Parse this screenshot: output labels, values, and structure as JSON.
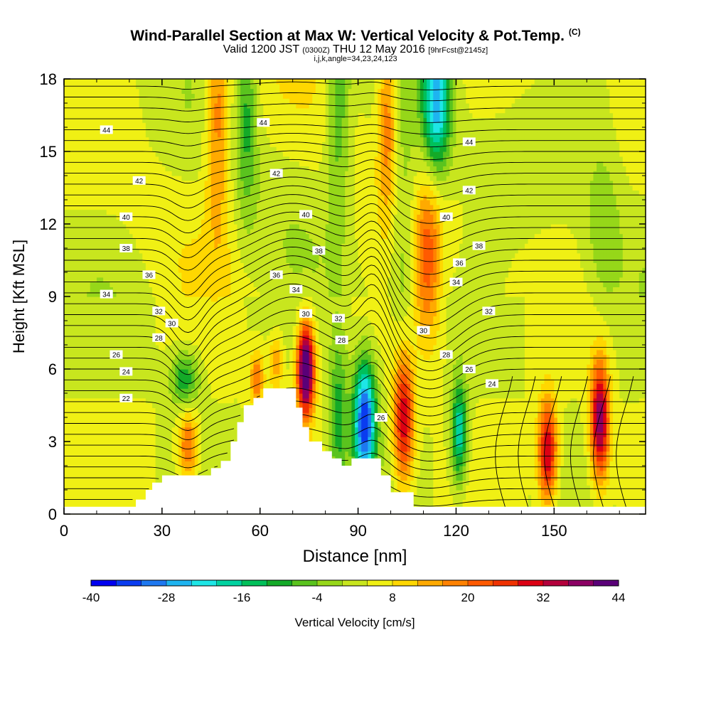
{
  "header": {
    "title": "Wind-Parallel Section at Max W: Vertical Velocity & Pot.Temp.",
    "title_mark": "(C)",
    "valid_pre": "Valid 1200 JST",
    "valid_small": "(0300Z)",
    "valid_post": "THU 12 May 2016",
    "fcst": "[9hrFcst@2145z]",
    "indices": "i,j,k,angle=34,23,24,123"
  },
  "chart_data": {
    "type": "heatmap",
    "xlabel": "Distance [nm]",
    "ylabel": "Height [Kft MSL]",
    "xlim": [
      0,
      178
    ],
    "ylim": [
      0,
      18
    ],
    "x_ticks": [
      0,
      30,
      60,
      90,
      120,
      150
    ],
    "y_ticks": [
      0,
      3,
      6,
      9,
      12,
      15,
      18
    ],
    "colorbar": {
      "label": "Vertical Velocity [cm/s]",
      "min": -40,
      "step": 4,
      "ticks": [
        -40,
        -28,
        -16,
        -4,
        8,
        20,
        32,
        44
      ],
      "colors": [
        "#0000f0",
        "#0a3cf0",
        "#1e78f0",
        "#1eb4f0",
        "#1ee6e6",
        "#00d2a0",
        "#00c05a",
        "#14aa28",
        "#5ac31e",
        "#96d719",
        "#c8e61e",
        "#f0f014",
        "#ffd700",
        "#ffaa00",
        "#ff8200",
        "#ff5a00",
        "#f03200",
        "#dc0014",
        "#b4003c",
        "#8c0064",
        "#5a0078"
      ]
    },
    "theta_labels": [
      {
        "v": "44",
        "x": 13,
        "y": 15.9
      },
      {
        "v": "44",
        "x": 61,
        "y": 16.2
      },
      {
        "v": "44",
        "x": 124,
        "y": 15.4
      },
      {
        "v": "42",
        "x": 23,
        "y": 13.8
      },
      {
        "v": "42",
        "x": 65,
        "y": 14.1
      },
      {
        "v": "42",
        "x": 124,
        "y": 13.4
      },
      {
        "v": "40",
        "x": 19,
        "y": 12.3
      },
      {
        "v": "40",
        "x": 74,
        "y": 12.4
      },
      {
        "v": "40",
        "x": 117,
        "y": 12.3
      },
      {
        "v": "38",
        "x": 19,
        "y": 11.0
      },
      {
        "v": "38",
        "x": 78,
        "y": 10.9
      },
      {
        "v": "38",
        "x": 127,
        "y": 11.1
      },
      {
        "v": "36",
        "x": 26,
        "y": 9.9
      },
      {
        "v": "36",
        "x": 65,
        "y": 9.9
      },
      {
        "v": "36",
        "x": 121,
        "y": 10.4
      },
      {
        "v": "34",
        "x": 13,
        "y": 9.1
      },
      {
        "v": "34",
        "x": 71,
        "y": 9.3
      },
      {
        "v": "34",
        "x": 120,
        "y": 9.6
      },
      {
        "v": "32",
        "x": 29,
        "y": 8.4
      },
      {
        "v": "32",
        "x": 84,
        "y": 8.1
      },
      {
        "v": "32",
        "x": 130,
        "y": 8.4
      },
      {
        "v": "30",
        "x": 33,
        "y": 7.9
      },
      {
        "v": "30",
        "x": 74,
        "y": 8.3
      },
      {
        "v": "30",
        "x": 110,
        "y": 7.6
      },
      {
        "v": "28",
        "x": 29,
        "y": 7.3
      },
      {
        "v": "28",
        "x": 85,
        "y": 7.2
      },
      {
        "v": "28",
        "x": 117,
        "y": 6.6
      },
      {
        "v": "26",
        "x": 16,
        "y": 6.6
      },
      {
        "v": "26",
        "x": 97,
        "y": 4.0
      },
      {
        "v": "26",
        "x": 124,
        "y": 6.0
      },
      {
        "v": "24",
        "x": 19,
        "y": 5.9
      },
      {
        "v": "24",
        "x": 131,
        "y": 5.4
      },
      {
        "v": "22",
        "x": 19,
        "y": 4.8
      }
    ],
    "terrain": [
      [
        0,
        0.3
      ],
      [
        22,
        0.3
      ],
      [
        22,
        0.6
      ],
      [
        25,
        0.6
      ],
      [
        25,
        1.0
      ],
      [
        27,
        1.0
      ],
      [
        27,
        1.3
      ],
      [
        30,
        1.3
      ],
      [
        30,
        1.6
      ],
      [
        45,
        1.6
      ],
      [
        45,
        1.9
      ],
      [
        48,
        1.9
      ],
      [
        48,
        2.2
      ],
      [
        51,
        2.2
      ],
      [
        51,
        3.0
      ],
      [
        53,
        3.0
      ],
      [
        53,
        3.8
      ],
      [
        55,
        3.8
      ],
      [
        55,
        4.5
      ],
      [
        58,
        4.5
      ],
      [
        58,
        4.8
      ],
      [
        61,
        4.8
      ],
      [
        61,
        5.2
      ],
      [
        71,
        5.2
      ],
      [
        71,
        4.4
      ],
      [
        73,
        4.4
      ],
      [
        73,
        3.6
      ],
      [
        75,
        3.6
      ],
      [
        75,
        3.0
      ],
      [
        79,
        3.0
      ],
      [
        79,
        2.6
      ],
      [
        82,
        2.6
      ],
      [
        82,
        2.3
      ],
      [
        85,
        2.3
      ],
      [
        85,
        2.0
      ],
      [
        88,
        2.0
      ],
      [
        88,
        2.3
      ],
      [
        97,
        2.3
      ],
      [
        97,
        1.6
      ],
      [
        100,
        1.6
      ],
      [
        100,
        0.9
      ],
      [
        107,
        0.9
      ],
      [
        107,
        0.3
      ],
      [
        178,
        0.3
      ]
    ],
    "w_cells": [
      {
        "x": 74,
        "y": 6.0,
        "amp": 48,
        "sx": 1.8,
        "sy": 1.3
      },
      {
        "x": 104,
        "y": 4.0,
        "amp": 30,
        "sx": 2.2,
        "sy": 1.9
      },
      {
        "x": 148,
        "y": 2.6,
        "amp": 30,
        "sx": 2.0,
        "sy": 1.5
      },
      {
        "x": 164,
        "y": 3.9,
        "amp": 36,
        "sx": 2.0,
        "sy": 1.7
      },
      {
        "x": 38,
        "y": 2.8,
        "amp": 18,
        "sx": 2.0,
        "sy": 1.0
      },
      {
        "x": 59,
        "y": 5.6,
        "amp": 16,
        "sx": 1.5,
        "sy": 0.8
      },
      {
        "x": 65,
        "y": 6.3,
        "amp": 12,
        "sx": 1.5,
        "sy": 0.8
      },
      {
        "x": 47,
        "y": 16.5,
        "amp": 16,
        "sx": 2.6,
        "sy": 3.5
      },
      {
        "x": 111,
        "y": 10.5,
        "amp": 18,
        "sx": 3.0,
        "sy": 2.4
      },
      {
        "x": 99,
        "y": 16.5,
        "amp": 16,
        "sx": 2.0,
        "sy": 3.0
      },
      {
        "x": 92,
        "y": 3.8,
        "amp": -40,
        "sx": 2.4,
        "sy": 1.8
      },
      {
        "x": 121,
        "y": 3.4,
        "amp": -24,
        "sx": 1.7,
        "sy": 1.5
      },
      {
        "x": 114,
        "y": 17.0,
        "amp": -30,
        "sx": 3.0,
        "sy": 2.0
      },
      {
        "x": 37,
        "y": 5.6,
        "amp": -16,
        "sx": 3.0,
        "sy": 0.8
      },
      {
        "x": 84,
        "y": 4.0,
        "amp": -14,
        "sx": 2.0,
        "sy": 2.5
      },
      {
        "x": 56,
        "y": 16.5,
        "amp": -12,
        "sx": 2.2,
        "sy": 3.0
      },
      {
        "x": 84,
        "y": 17.0,
        "amp": -12,
        "sx": 2.5,
        "sy": 3.5
      },
      {
        "x": 104,
        "y": 11.5,
        "amp": -8,
        "sx": 3.5,
        "sy": 4.5
      },
      {
        "x": 165,
        "y": 12.0,
        "amp": -6,
        "sx": 4.0,
        "sy": 3.0
      }
    ]
  }
}
